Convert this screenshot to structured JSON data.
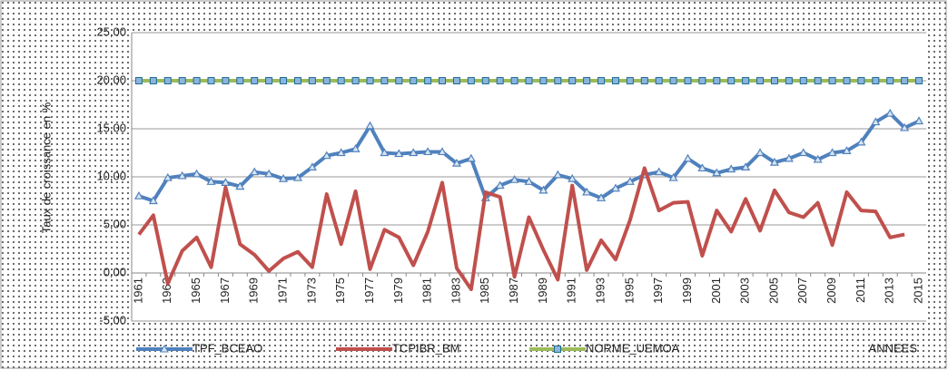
{
  "chart_data": {
    "type": "line",
    "y_label": "Taux de croissance en %",
    "x_label": "ANNEES",
    "categories": [
      "1961",
      null,
      "1963",
      null,
      "1965",
      null,
      "1967",
      null,
      "1969",
      null,
      "1971",
      null,
      "1973",
      null,
      "1975",
      null,
      "1977",
      null,
      "1979",
      null,
      "1981",
      null,
      "1983",
      null,
      "1985",
      null,
      "1987",
      null,
      "1989",
      null,
      "1991",
      null,
      "1993",
      null,
      "1995",
      null,
      "1997",
      null,
      "1999",
      null,
      "2001",
      null,
      "2003",
      null,
      "2005",
      null,
      "2007",
      null,
      "2009",
      null,
      "2011",
      null,
      "2013",
      null,
      "2015"
    ],
    "series": [
      {
        "name": "TPF_BCEAO",
        "color": "#4f81bd",
        "marker": "triangle",
        "values": [
          8.0,
          7.5,
          9.9,
          10.1,
          10.3,
          9.5,
          9.4,
          9.0,
          10.5,
          10.3,
          9.8,
          9.9,
          11.0,
          12.2,
          12.5,
          12.9,
          15.3,
          12.5,
          12.4,
          12.5,
          12.6,
          12.6,
          11.4,
          11.9,
          7.8,
          9.1,
          9.7,
          9.5,
          8.6,
          10.2,
          9.8,
          8.4,
          7.8,
          8.8,
          9.5,
          10.2,
          10.5,
          9.9,
          11.9,
          10.9,
          10.4,
          10.8,
          11.0,
          12.5,
          11.5,
          11.9,
          12.5,
          11.8,
          12.5,
          12.7,
          13.6,
          15.7,
          16.6,
          15.1,
          15.8
        ]
      },
      {
        "name": "TCPIBR_BM",
        "color": "#c0504d",
        "marker": "none",
        "values": [
          4.0,
          6.0,
          -1.1,
          2.3,
          3.7,
          0.6,
          8.9,
          3.0,
          1.9,
          0.2,
          1.5,
          2.2,
          0.6,
          8.2,
          3.0,
          8.5,
          0.4,
          4.5,
          3.7,
          0.8,
          4.3,
          9.4,
          0.5,
          -1.7,
          8.4,
          7.9,
          -0.4,
          5.8,
          2.4,
          -0.7,
          9.1,
          0.3,
          3.4,
          1.4,
          5.5,
          10.9,
          6.5,
          7.3,
          7.4,
          1.8,
          6.5,
          4.3,
          7.7,
          4.4,
          8.6,
          6.3,
          5.8,
          7.3,
          2.9,
          8.4,
          6.5,
          6.4,
          3.7,
          4.0,
          null
        ]
      },
      {
        "name": "NORME_UEMOA",
        "color": "#9bbb59",
        "marker": "square",
        "values": [
          20,
          20,
          20,
          20,
          20,
          20,
          20,
          20,
          20,
          20,
          20,
          20,
          20,
          20,
          20,
          20,
          20,
          20,
          20,
          20,
          20,
          20,
          20,
          20,
          20,
          20,
          20,
          20,
          20,
          20,
          20,
          20,
          20,
          20,
          20,
          20,
          20,
          20,
          20,
          20,
          20,
          20,
          20,
          20,
          20,
          20,
          20,
          20,
          20,
          20,
          20,
          20,
          20,
          20,
          20
        ]
      }
    ],
    "ylim": [
      -5,
      25
    ],
    "yticks": [
      {
        "value": -5,
        "label": "-5,00"
      },
      {
        "value": 0,
        "label": "0,00"
      },
      {
        "value": 5,
        "label": "5,00"
      },
      {
        "value": 10,
        "label": "10,00"
      },
      {
        "value": 15,
        "label": "15,00"
      },
      {
        "value": 20,
        "label": "20,00"
      },
      {
        "value": 25,
        "label": "25,00"
      }
    ],
    "grid": true,
    "legend": "bottom"
  }
}
